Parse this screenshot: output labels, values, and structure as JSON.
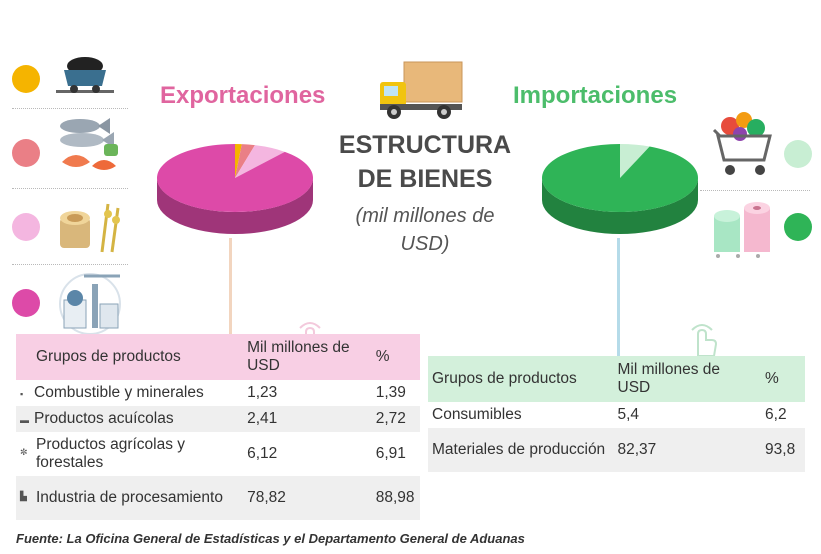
{
  "titles": {
    "exports": "Exportaciones",
    "imports": "Importaciones",
    "center_title_line1": "ESTRUCTURA",
    "center_title_line2": "DE BIENES",
    "center_subtitle_line1": "(mil millones de",
    "center_subtitle_line2": "USD)"
  },
  "legend_colors": {
    "exports": [
      "#f5b400",
      "#ea7f86",
      "#f4b6e0",
      "#dd4aa8"
    ],
    "imports": [
      "#c8eed3",
      "#2fb457"
    ]
  },
  "icons": {
    "exports": [
      "mine-cart-icon",
      "fish-seafood-icon",
      "wood-grain-icon",
      "factory-icon"
    ],
    "imports": [
      "shopping-cart-icon",
      "fabric-rolls-icon"
    ],
    "center": "delivery-truck-icon",
    "pointers": [
      "pointing-hand-icon",
      "pointing-hand-icon"
    ]
  },
  "chart_data": [
    {
      "type": "pie",
      "title": "Exportaciones",
      "labels": [
        "Combustible y minerales",
        "Productos acuícolas",
        "Productos agrícolas y forestales",
        "Industria de procesamiento"
      ],
      "values": [
        1.39,
        2.72,
        6.91,
        88.98
      ],
      "colors": [
        "#f5b400",
        "#ea7f86",
        "#f4b6e0",
        "#dd4aa8"
      ]
    },
    {
      "type": "pie",
      "title": "Importaciones",
      "labels": [
        "Consumibles",
        "Materiales de producción"
      ],
      "values": [
        6.2,
        93.8
      ],
      "colors": [
        "#c8eed3",
        "#2fb457"
      ]
    }
  ],
  "exports_table": {
    "headers": [
      "Grupos de productos",
      "Mil millones de USD",
      "%"
    ],
    "rows": [
      {
        "name": "Combustible y minerales",
        "value": "1,23",
        "pct": "1,39"
      },
      {
        "name": "Productos acuícolas",
        "value": "2,41",
        "pct": "2,72"
      },
      {
        "name": "Productos agrícolas y forestales",
        "value": "6,12",
        "pct": "6,91"
      },
      {
        "name": "Industria de procesamiento",
        "value": "78,82",
        "pct": "88,98"
      }
    ]
  },
  "imports_table": {
    "headers": [
      "Grupos de productos",
      "Mil millones de USD",
      "%"
    ],
    "rows": [
      {
        "name": "Consumibles",
        "value": "5,4",
        "pct": "6,2"
      },
      {
        "name": "Materiales de producción",
        "value": "82,37",
        "pct": "93,8"
      }
    ]
  },
  "source": "Fuente: La Oficina General de Estadísticas y el Departamento General de Aduanas"
}
